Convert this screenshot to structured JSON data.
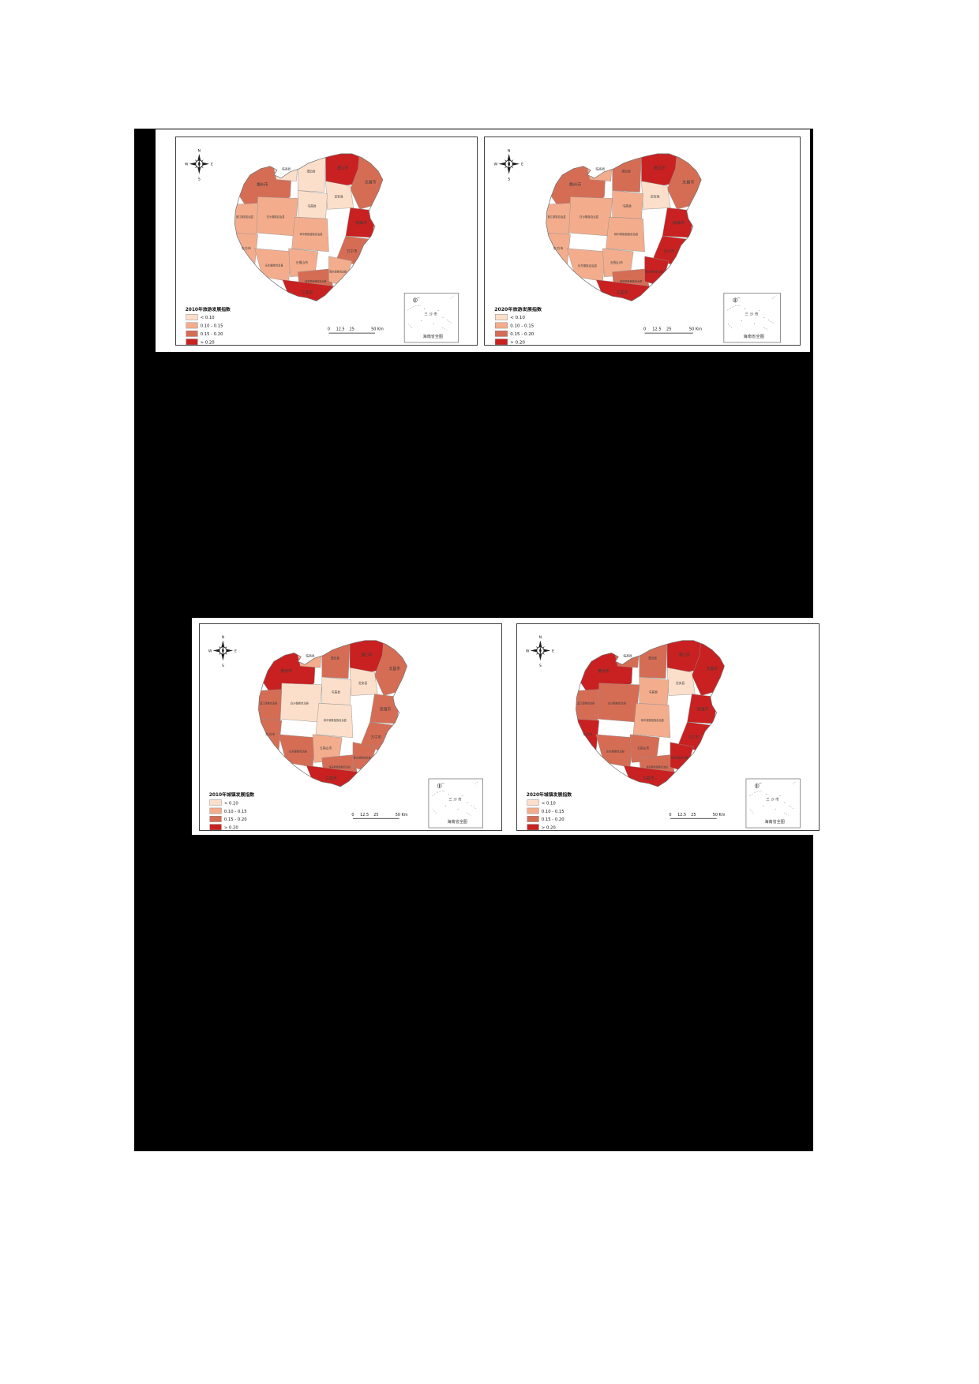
{
  "colors": {
    "page_bg": "#ffffff",
    "figure_background": "#000000",
    "panel_bg": "#ffffff",
    "neatline": "#3f3f3f",
    "region_border": "#909090",
    "island_outline": "#6e6e6e",
    "label_color": "#3a3a3a",
    "class_colors": [
      "#fcdfca",
      "#f3ad8d",
      "#d56d55",
      "#c92121"
    ]
  },
  "legend_classes": [
    "< 0.10",
    "0.10 - 0.15",
    "0.15 - 0.20",
    "> 0.20"
  ],
  "compass": {
    "north": "N",
    "south": "S",
    "east": "E",
    "west": "W"
  },
  "scalebar": {
    "labels": [
      "0",
      "12.5",
      "25",
      "50 Km"
    ]
  },
  "inset": {
    "island_label": "三沙市",
    "caption": "海南省全图"
  },
  "panels": [
    {
      "title": "2010年旅游发展指数"
    },
    {
      "title": "2020年旅游发展指数"
    },
    {
      "title": "2010年城镇发展指数"
    },
    {
      "title": "2020年城镇发展指数"
    }
  ],
  "chart_data": {
    "type": "heatmap",
    "subtype": "choropleth-map",
    "area_caption": "海南省全图",
    "categories": [
      "海口市",
      "文昌市",
      "澄迈县",
      "临高县",
      "儋州市",
      "定安县",
      "屯昌县",
      "琼海市",
      "万宁市",
      "琼中黎族苗族自治县",
      "白沙黎族自治县",
      "昌江黎族自治县",
      "东方市",
      "乐东黎族自治县",
      "五指山市",
      "保亭黎族苗族自治县",
      "陵水黎族自治县",
      "三亚市"
    ],
    "class_breaks": [
      "< 0.10",
      "0.10 - 0.15",
      "0.15 - 0.20",
      "> 0.20"
    ],
    "legend_note": "values are class indices 1-4 into class_breaks",
    "series": [
      {
        "name": "2010年旅游发展指数",
        "values": [
          4,
          3,
          1,
          1,
          3,
          1,
          1,
          4,
          3,
          2,
          2,
          2,
          2,
          2,
          2,
          3,
          2,
          4
        ]
      },
      {
        "name": "2020年旅游发展指数",
        "values": [
          4,
          3,
          3,
          2,
          3,
          1,
          2,
          4,
          4,
          2,
          2,
          2,
          2,
          2,
          2,
          3,
          4,
          4
        ]
      },
      {
        "name": "2010年城镇发展指数",
        "values": [
          4,
          3,
          3,
          2,
          4,
          1,
          1,
          3,
          3,
          1,
          1,
          3,
          3,
          3,
          2,
          3,
          3,
          4
        ]
      },
      {
        "name": "2020年城镇发展指数",
        "values": [
          4,
          4,
          3,
          3,
          4,
          1,
          2,
          4,
          4,
          2,
          3,
          3,
          4,
          3,
          3,
          3,
          4,
          4
        ]
      }
    ]
  }
}
